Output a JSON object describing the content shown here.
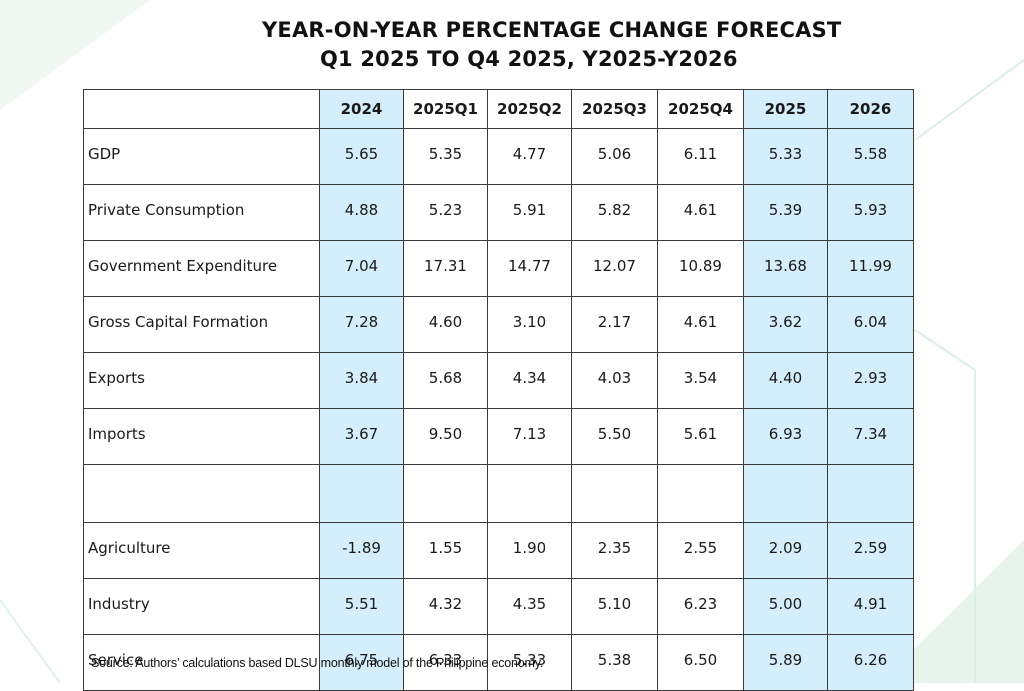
{
  "title": {
    "line1": "YEAR-ON-YEAR PERCENTAGE CHANGE FORECAST",
    "line2": "Q1 2025 TO Q4 2025, Y2025-Y2026"
  },
  "columns": [
    "2024",
    "2025Q1",
    "2025Q2",
    "2025Q3",
    "2025Q4",
    "2025",
    "2026"
  ],
  "rows": [
    {
      "label": "GDP",
      "values": [
        "5.65",
        "5.35",
        "4.77",
        "5.06",
        "6.11",
        "5.33",
        "5.58"
      ]
    },
    {
      "label": "Private Consumption",
      "values": [
        "4.88",
        "5.23",
        "5.91",
        "5.82",
        "4.61",
        "5.39",
        "5.93"
      ]
    },
    {
      "label": "Government Expenditure",
      "values": [
        "7.04",
        "17.31",
        "14.77",
        "12.07",
        "10.89",
        "13.68",
        "11.99"
      ]
    },
    {
      "label": "Gross Capital Formation",
      "values": [
        "7.28",
        "4.60",
        "3.10",
        "2.17",
        "4.61",
        "3.62",
        "6.04"
      ]
    },
    {
      "label": "Exports",
      "values": [
        "3.84",
        "5.68",
        "4.34",
        "4.03",
        "3.54",
        "4.40",
        "2.93"
      ]
    },
    {
      "label": "Imports",
      "values": [
        "3.67",
        "9.50",
        "7.13",
        "5.50",
        "5.61",
        "6.93",
        "7.34"
      ]
    },
    {
      "label": "",
      "values": [
        "",
        "",
        "",
        "",
        "",
        "",
        ""
      ]
    },
    {
      "label": "Agriculture",
      "values": [
        "-1.89",
        "1.55",
        "1.90",
        "2.35",
        "2.55",
        "2.09",
        "2.59"
      ]
    },
    {
      "label": "Industry",
      "values": [
        "5.51",
        "4.32",
        "4.35",
        "5.10",
        "6.23",
        "5.00",
        "4.91"
      ]
    },
    {
      "label": "Service",
      "values": [
        "6.75",
        "6.33",
        "5.33",
        "5.38",
        "6.50",
        "5.89",
        "6.26"
      ]
    }
  ],
  "source": "Source: Authors’ calculations based DLSU monthly model of the Philippine economy.",
  "colors": {
    "highlight": "#d5eefb",
    "border": "#3a3a3a",
    "decoration": "#e4f3ea"
  }
}
